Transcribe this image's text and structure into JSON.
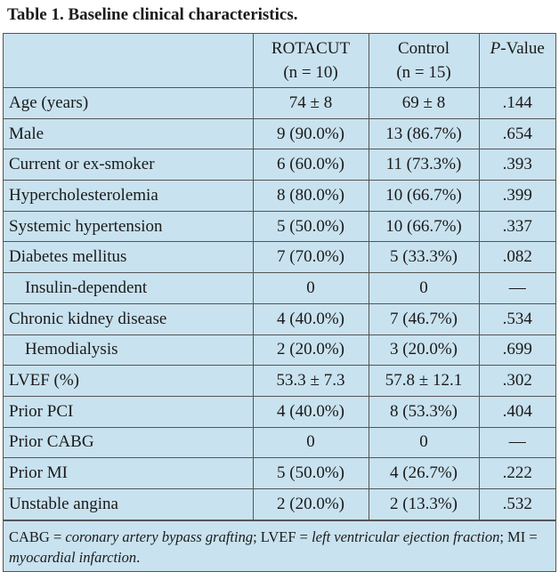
{
  "title": "Table 1. Baseline clinical characteristics.",
  "header": {
    "columns": [
      [
        "ROTACUT",
        "(n = 10)"
      ],
      [
        "Control",
        "(n = 15)"
      ]
    ],
    "p_value": [
      "P",
      "-Value"
    ]
  },
  "table": {
    "rows": [
      [
        "Age (years)",
        "74 ± 8",
        "69 ± 8",
        ".144"
      ],
      [
        "Male",
        "9 (90.0%)",
        "13 (86.7%)",
        ".654"
      ],
      [
        "Current or ex-smoker",
        "6 (60.0%)",
        "11 (73.3%)",
        ".393"
      ],
      [
        "Hypercholesterolemia",
        "8 (80.0%)",
        "10 (66.7%)",
        ".399"
      ],
      [
        "Systemic hypertension",
        "5 (50.0%)",
        "10 (66.7%)",
        ".337"
      ],
      [
        "Diabetes mellitus",
        "7 (70.0%)",
        "5 (33.3%)",
        ".082"
      ],
      [
        "Insulin-dependent",
        "0",
        "0",
        "—"
      ],
      [
        "Chronic kidney disease",
        "4 (40.0%)",
        "7 (46.7%)",
        ".534"
      ],
      [
        "Hemodialysis",
        "2 (20.0%)",
        "3 (20.0%)",
        ".699"
      ],
      [
        "LVEF (%)",
        "53.3 ± 7.3",
        "57.8 ± 12.1",
        ".302"
      ],
      [
        "Prior PCI",
        "4 (40.0%)",
        "8 (53.3%)",
        ".404"
      ],
      [
        "Prior CABG",
        "0",
        "0",
        "—"
      ],
      [
        "Prior MI",
        "5 (50.0%)",
        "4 (26.7%)",
        ".222"
      ],
      [
        "Unstable angina",
        "2 (20.0%)",
        "2 (13.3%)",
        ".532"
      ]
    ]
  },
  "footnote": [
    "CABG = ",
    "coronary artery bypass grafting",
    "; LVEF = ",
    "left ventricular ejection fraction",
    "; MI = ",
    "myocardial infarction",
    "."
  ]
}
